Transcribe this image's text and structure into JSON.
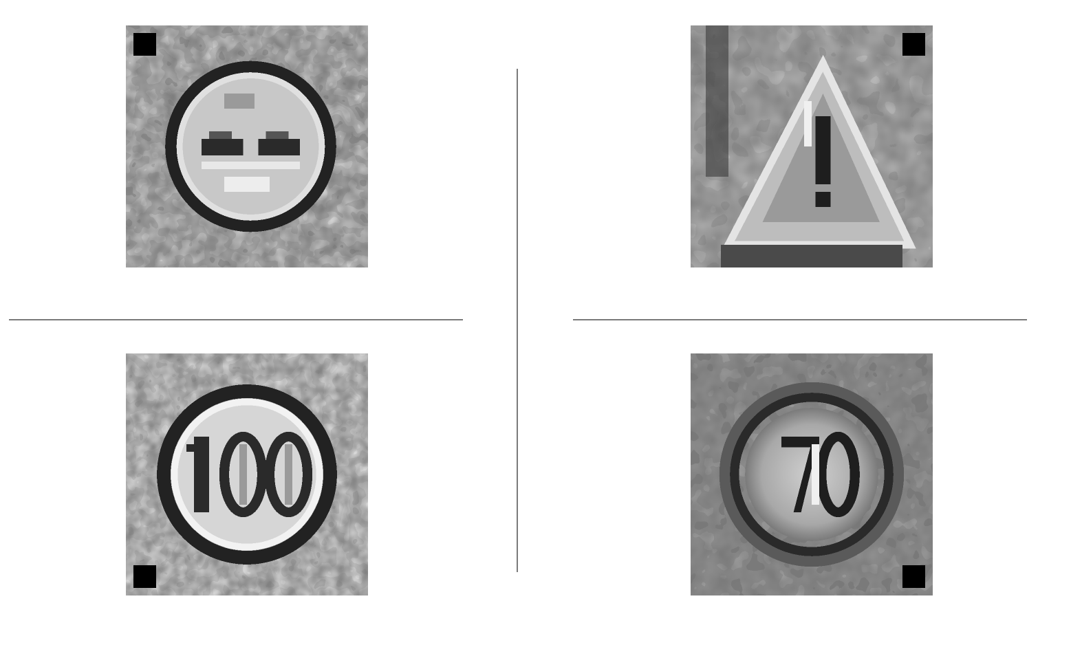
{
  "panels": [
    {
      "id": "top-left",
      "subject": "no-passing-sign",
      "style": "grayscale-pixelated"
    },
    {
      "id": "top-right",
      "subject": "warning-triangle-exclamation-sign",
      "style": "grayscale-pixelated"
    },
    {
      "id": "bottom-left",
      "subject": "speed-limit-sign",
      "sign_text": "100",
      "style": "grayscale-pixelated"
    },
    {
      "id": "bottom-right",
      "subject": "speed-limit-sign",
      "sign_text": "70",
      "style": "grayscale-pixelated"
    }
  ],
  "colors": {
    "background": "#ffffff",
    "divider": "#7a7a7a"
  }
}
